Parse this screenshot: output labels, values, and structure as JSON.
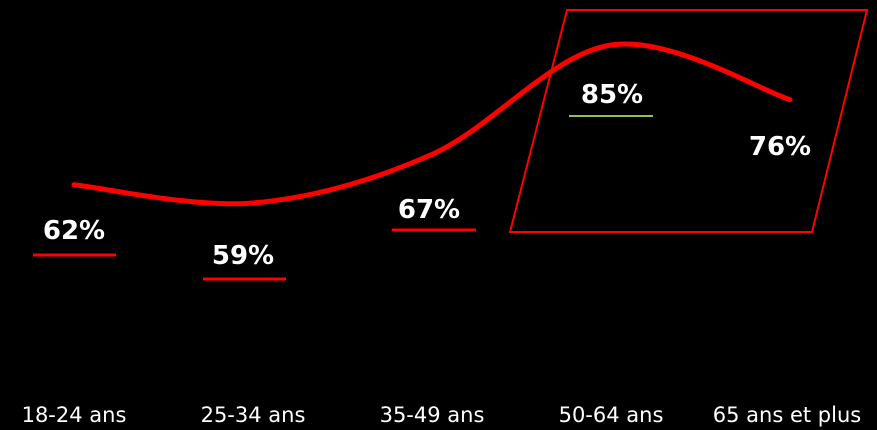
{
  "chart_data": {
    "type": "line",
    "categories": [
      "18-24 ans",
      "25-34 ans",
      "35-49 ans",
      "50-64 ans",
      "65 ans et plus"
    ],
    "series": [
      {
        "values": [
          62,
          59,
          67,
          85,
          76
        ]
      }
    ],
    "value_labels": [
      "62%",
      "59%",
      "67%",
      "85%",
      "76%"
    ],
    "highlighted_category": "50-64 ans",
    "ylim": [
      50,
      90
    ],
    "grid": false,
    "colors": {
      "background": "#000000",
      "line": "#ff0000",
      "text": "#ffffff",
      "underline": "#ff0000",
      "highlight_underline": "#8fbf5a",
      "highlight_frame": "#ff0000"
    }
  }
}
